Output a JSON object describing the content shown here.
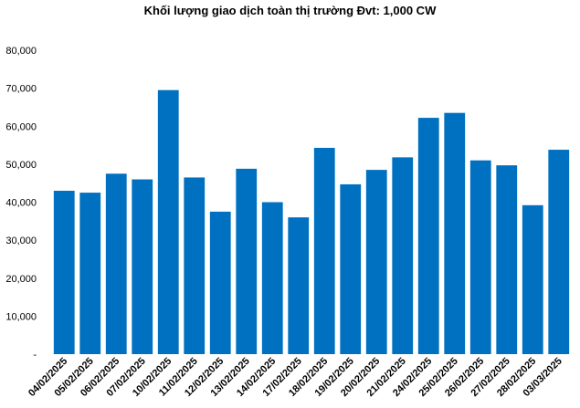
{
  "chart_data": {
    "type": "bar",
    "title": "Khối lượng giao dịch toàn thị trường Đvt: 1,000 CW",
    "xlabel": "",
    "ylabel": "",
    "ylim": [
      0,
      80000
    ],
    "yticks": [
      0,
      10000,
      20000,
      30000,
      40000,
      50000,
      60000,
      70000,
      80000
    ],
    "ytick_labels": [
      "-",
      "10,000",
      "20,000",
      "30,000",
      "40,000",
      "50,000",
      "60,000",
      "70,000",
      "80,000"
    ],
    "grid": false,
    "legend": "none",
    "bar_color": "#0070C0",
    "categories": [
      "04/02/2025",
      "05/02/2025",
      "06/02/2025",
      "07/02/2025",
      "10/02/2025",
      "11/02/2025",
      "12/02/2025",
      "13/02/2025",
      "14/02/2025",
      "17/02/2025",
      "18/02/2025",
      "19/02/2025",
      "20/02/2025",
      "21/02/2025",
      "24/02/2025",
      "25/02/2025",
      "26/02/2025",
      "27/02/2025",
      "28/02/2025",
      "03/03/2025"
    ],
    "values": [
      43000,
      42500,
      47500,
      46000,
      69500,
      46500,
      37500,
      48800,
      40000,
      36000,
      54300,
      44700,
      48500,
      51800,
      62200,
      63500,
      51000,
      49700,
      39200,
      53800
    ]
  }
}
